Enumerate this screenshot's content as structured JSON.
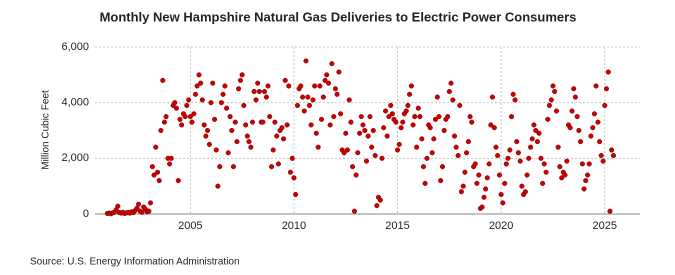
{
  "chart_data": {
    "type": "scatter",
    "title": "Monthly New Hampshire Natural Gas Deliveries to Electric Power Consumers",
    "y_label": "Million Cubic Feet",
    "source": "Source: U.S. Energy Information Administration",
    "color": "#cc0000",
    "grid": true,
    "xlim": [
      2000.4,
      2026.7
    ],
    "xticks": [
      2005,
      2010,
      2015,
      2020,
      2025
    ],
    "ylim": [
      0,
      6000
    ],
    "yticks": [
      0,
      {
        "value": 2000,
        "label": "2,000"
      },
      {
        "value": 4000,
        "label": "4,000"
      },
      {
        "value": 6000,
        "label": "6,000"
      }
    ],
    "x": [
      2001.0,
      2001.08,
      2001.17,
      2001.25,
      2001.33,
      2001.42,
      2001.5,
      2001.58,
      2001.67,
      2001.75,
      2001.83,
      2001.92,
      2002.0,
      2002.08,
      2002.17,
      2002.25,
      2002.33,
      2002.42,
      2002.5,
      2002.58,
      2002.67,
      2002.75,
      2002.83,
      2002.92,
      2003.0,
      2003.08,
      2003.17,
      2003.25,
      2003.33,
      2003.42,
      2003.5,
      2003.58,
      2003.67,
      2003.75,
      2003.83,
      2003.92,
      2004.0,
      2004.08,
      2004.17,
      2004.25,
      2004.33,
      2004.42,
      2004.5,
      2004.58,
      2004.67,
      2004.75,
      2004.83,
      2004.92,
      2005.0,
      2005.08,
      2005.17,
      2005.25,
      2005.33,
      2005.42,
      2005.5,
      2005.58,
      2005.67,
      2005.75,
      2005.83,
      2005.92,
      2006.0,
      2006.08,
      2006.17,
      2006.25,
      2006.33,
      2006.42,
      2006.5,
      2006.58,
      2006.67,
      2006.75,
      2006.83,
      2006.92,
      2007.0,
      2007.08,
      2007.17,
      2007.25,
      2007.33,
      2007.42,
      2007.5,
      2007.58,
      2007.67,
      2007.75,
      2007.83,
      2007.92,
      2008.0,
      2008.08,
      2008.17,
      2008.25,
      2008.33,
      2008.42,
      2008.5,
      2008.58,
      2008.67,
      2008.75,
      2008.83,
      2008.92,
      2009.0,
      2009.08,
      2009.17,
      2009.25,
      2009.33,
      2009.42,
      2009.5,
      2009.58,
      2009.67,
      2009.75,
      2009.83,
      2009.92,
      2010.0,
      2010.08,
      2010.17,
      2010.25,
      2010.33,
      2010.42,
      2010.5,
      2010.58,
      2010.67,
      2010.75,
      2010.83,
      2010.92,
      2011.0,
      2011.08,
      2011.17,
      2011.25,
      2011.33,
      2011.42,
      2011.5,
      2011.58,
      2011.67,
      2011.75,
      2011.83,
      2011.92,
      2012.0,
      2012.08,
      2012.17,
      2012.25,
      2012.33,
      2012.42,
      2012.5,
      2012.58,
      2012.67,
      2012.75,
      2012.83,
      2012.92,
      2013.0,
      2013.08,
      2013.17,
      2013.25,
      2013.33,
      2013.42,
      2013.5,
      2013.58,
      2013.67,
      2013.75,
      2013.83,
      2013.92,
      2014.0,
      2014.08,
      2014.17,
      2014.25,
      2014.33,
      2014.42,
      2014.5,
      2014.58,
      2014.67,
      2014.75,
      2014.83,
      2014.92,
      2015.0,
      2015.08,
      2015.17,
      2015.25,
      2015.33,
      2015.42,
      2015.5,
      2015.58,
      2015.67,
      2015.75,
      2015.83,
      2015.92,
      2016.0,
      2016.08,
      2016.17,
      2016.25,
      2016.33,
      2016.42,
      2016.5,
      2016.58,
      2016.67,
      2016.75,
      2016.83,
      2016.92,
      2017.0,
      2017.08,
      2017.17,
      2017.25,
      2017.33,
      2017.42,
      2017.5,
      2017.58,
      2017.67,
      2017.75,
      2017.83,
      2017.92,
      2018.0,
      2018.08,
      2018.17,
      2018.25,
      2018.33,
      2018.42,
      2018.5,
      2018.58,
      2018.67,
      2018.75,
      2018.83,
      2018.92,
      2019.0,
      2019.08,
      2019.17,
      2019.25,
      2019.33,
      2019.42,
      2019.5,
      2019.58,
      2019.67,
      2019.75,
      2019.83,
      2019.92,
      2020.0,
      2020.08,
      2020.17,
      2020.25,
      2020.33,
      2020.42,
      2020.5,
      2020.58,
      2020.67,
      2020.75,
      2020.83,
      2020.92,
      2021.0,
      2021.08,
      2021.17,
      2021.25,
      2021.33,
      2021.42,
      2021.5,
      2021.58,
      2021.67,
      2021.75,
      2021.83,
      2021.92,
      2022.0,
      2022.08,
      2022.17,
      2022.25,
      2022.33,
      2022.42,
      2022.5,
      2022.58,
      2022.67,
      2022.75,
      2022.83,
      2022.92,
      2023.0,
      2023.08,
      2023.17,
      2023.25,
      2023.33,
      2023.42,
      2023.5,
      2023.58,
      2023.67,
      2023.75,
      2023.83,
      2023.92,
      2024.0,
      2024.08,
      2024.17,
      2024.25,
      2024.33,
      2024.42,
      2024.5,
      2024.58,
      2024.67,
      2024.75,
      2024.83,
      2024.92,
      2025.0,
      2025.08,
      2025.17,
      2025.25,
      2025.33,
      2025.42
    ],
    "values": [
      20,
      30,
      10,
      40,
      60,
      150,
      280,
      50,
      30,
      60,
      20,
      40,
      60,
      30,
      80,
      50,
      120,
      200,
      350,
      100,
      60,
      250,
      180,
      80,
      100,
      400,
      1700,
      1400,
      2400,
      1500,
      1200,
      3000,
      4800,
      3300,
      3500,
      2000,
      1800,
      2000,
      3900,
      4000,
      3800,
      1200,
      3400,
      3200,
      3600,
      3500,
      3900,
      4100,
      3500,
      3300,
      3600,
      4300,
      4600,
      5000,
      4700,
      4100,
      3200,
      2800,
      3000,
      2500,
      4000,
      4700,
      3400,
      2300,
      1000,
      1700,
      4000,
      4300,
      4600,
      3800,
      2200,
      3500,
      3000,
      1700,
      3300,
      2600,
      4500,
      4800,
      5000,
      3900,
      3200,
      2800,
      2600,
      2400,
      3300,
      4400,
      4100,
      4700,
      4400,
      3300,
      3300,
      4400,
      4200,
      4600,
      3500,
      1700,
      2300,
      3300,
      2800,
      1800,
      3000,
      3100,
      2700,
      4800,
      3200,
      4600,
      1500,
      2000,
      1300,
      700,
      3900,
      4500,
      4600,
      4200,
      3700,
      5500,
      4200,
      3900,
      3200,
      4100,
      4600,
      2900,
      2400,
      4600,
      3400,
      4200,
      4800,
      5000,
      4700,
      3200,
      5400,
      3500,
      4500,
      4300,
      5100,
      3600,
      2300,
      2200,
      2900,
      2300,
      4100,
      3300,
      1700,
      100,
      1400,
      2200,
      2900,
      3500,
      3200,
      3000,
      1900,
      2800,
      3500,
      2400,
      3000,
      2100,
      300,
      600,
      500,
      2000,
      3100,
      3700,
      2800,
      3500,
      3900,
      3600,
      3400,
      3300,
      2300,
      2500,
      3100,
      3300,
      3600,
      3700,
      3900,
      4300,
      4600,
      3200,
      3500,
      2400,
      3800,
      3500,
      2700,
      1700,
      1100,
      2000,
      3200,
      3100,
      2200,
      2700,
      3400,
      4200,
      3500,
      1200,
      1700,
      3000,
      3400,
      3500,
      4400,
      4700,
      4100,
      2800,
      2400,
      2100,
      3900,
      800,
      1000,
      1500,
      2200,
      2600,
      3500,
      3300,
      1700,
      1800,
      1100,
      1400,
      200,
      250,
      600,
      900,
      1300,
      1800,
      3200,
      4200,
      3100,
      2400,
      2100,
      1400,
      700,
      400,
      1100,
      1800,
      2000,
      2300,
      3500,
      4300,
      4100,
      2600,
      2200,
      1900,
      1000,
      700,
      800,
      1400,
      2000,
      2400,
      2700,
      3200,
      3000,
      2600,
      2900,
      2000,
      1100,
      1800,
      1500,
      3400,
      3900,
      4100,
      4600,
      4400,
      3700,
      2400,
      1700,
      1300,
      1500,
      1400,
      1900,
      3200,
      3100,
      3700,
      4500,
      4200,
      3500,
      3000,
      2600,
      1800,
      900,
      1200,
      1400,
      1800,
      2800,
      3100,
      3600,
      4600,
      3300,
      2600,
      2100,
      1900,
      3900,
      4500,
      5100,
      100,
      2300,
      2100
    ]
  }
}
